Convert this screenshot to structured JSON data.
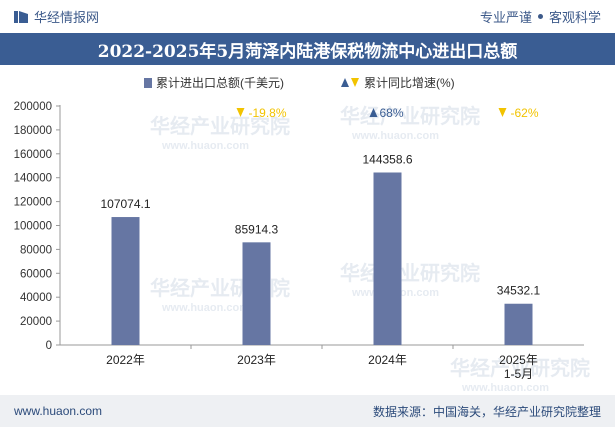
{
  "header": {
    "brand": "华经情报网",
    "tagline_left": "专业严谨",
    "tagline_right": "客观科学"
  },
  "colors": {
    "bar": "#6676a3",
    "header_bg": "#3a5d93",
    "up": "#3a5d93",
    "down": "#f2c300"
  },
  "watermark": {
    "text": "华经产业研究院",
    "url": "www.huaon.com"
  },
  "chart_data": {
    "type": "bar",
    "title": "2022-2025年5月菏泽内陆港保税物流中心进出口总额",
    "legend": {
      "bar_label": "累计进出口总额(千美元)",
      "line_label": "累计同比增速(%)"
    },
    "categories": [
      "2022年",
      "2023年",
      "2024年",
      "2025年\n1-5月"
    ],
    "values": [
      107074.1,
      85914.3,
      144358.6,
      34532.1
    ],
    "value_labels": [
      "107074.1",
      "85914.3",
      "144358.6",
      "34532.1"
    ],
    "growth": [
      null,
      -19.8,
      68,
      -62
    ],
    "growth_labels": [
      "",
      "-19.8%",
      "68%",
      "-62%"
    ],
    "yticks": [
      0,
      20000,
      40000,
      60000,
      80000,
      100000,
      120000,
      140000,
      160000,
      180000,
      200000
    ],
    "ylim": [
      0,
      200000
    ]
  },
  "footer": {
    "website": "www.huaon.com",
    "source": "数据来源：中国海关，华经产业研究院整理"
  }
}
